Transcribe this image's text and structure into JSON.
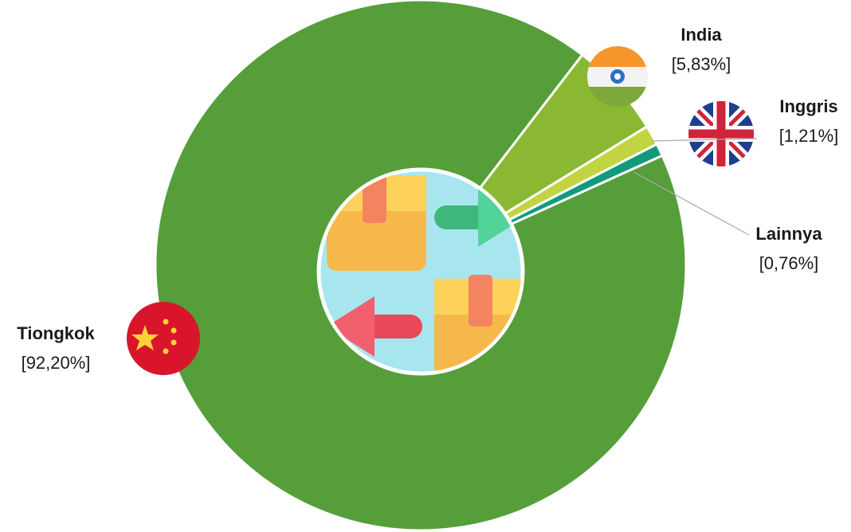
{
  "chart_data": {
    "type": "donut",
    "categories": [
      "India",
      "Inggris",
      "Lainnya",
      "Tiongkok"
    ],
    "values": [
      5.83,
      1.21,
      0.76,
      92.2
    ],
    "value_labels": [
      "[5,83%]",
      "[1,21%]",
      "[0,76%]",
      "[92,20%]"
    ],
    "colors": [
      "#8ab833",
      "#c3d443",
      "#129a7c",
      "#559e3a"
    ]
  }
}
